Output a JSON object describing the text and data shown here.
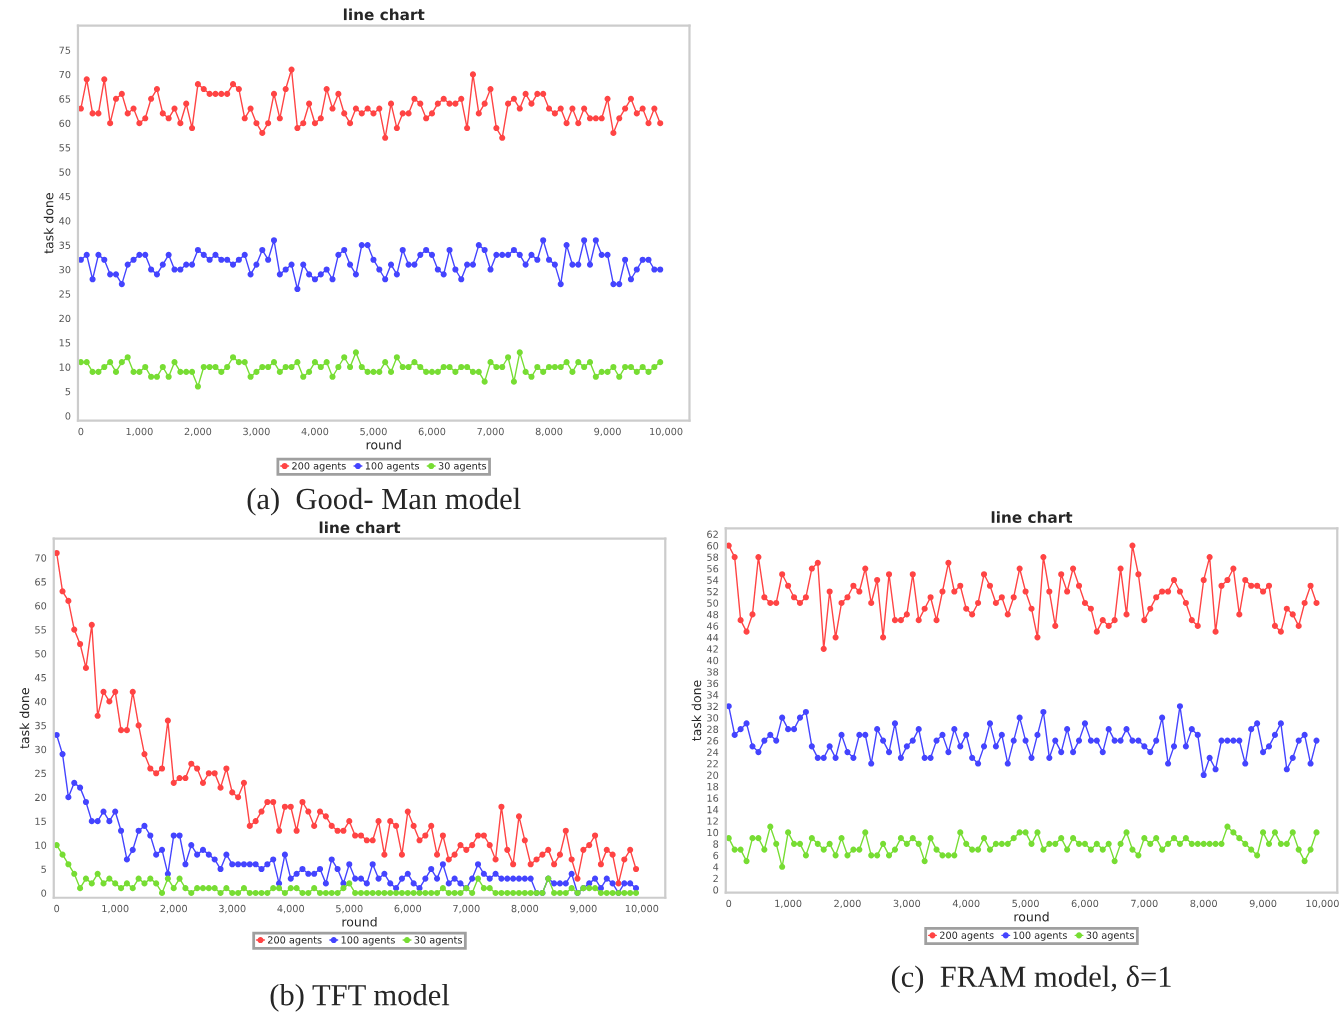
{
  "chart_data": [
    {
      "type": "line",
      "title": "line chart",
      "xlabel": "round",
      "ylabel": "task done",
      "marker": "circle",
      "legend": "bottom",
      "grid": false,
      "x": [
        0,
        100,
        200,
        300,
        400,
        500,
        600,
        700,
        800,
        900,
        1000,
        1100,
        1200,
        1300,
        1400,
        1500,
        1600,
        1700,
        1800,
        1900,
        2000,
        2100,
        2200,
        2300,
        2400,
        2500,
        2600,
        2700,
        2800,
        2900,
        3000,
        3100,
        3200,
        3300,
        3400,
        3500,
        3600,
        3700,
        3800,
        3900,
        4000,
        4100,
        4200,
        4300,
        4400,
        4500,
        4600,
        4700,
        4800,
        4900,
        5000,
        5100,
        5200,
        5300,
        5400,
        5500,
        5600,
        5700,
        5800,
        5900,
        6000,
        6100,
        6200,
        6300,
        6400,
        6500,
        6600,
        6700,
        6800,
        6900,
        7000,
        7100,
        7200,
        7300,
        7400,
        7500,
        7600,
        7700,
        7800,
        7900,
        8000,
        8100,
        8200,
        8300,
        8400,
        8500,
        8600,
        8700,
        8800,
        8900,
        9000,
        9100,
        9200,
        9300,
        9400,
        9500,
        9600,
        9700,
        9800,
        9900
      ],
      "xlim": [
        -50,
        10400
      ],
      "xticks": [
        0,
        {
          "value": 1000,
          "label": "1,000"
        },
        {
          "value": 2000,
          "label": "2,000"
        },
        {
          "value": 3000,
          "label": "3,000"
        },
        {
          "value": 4000,
          "label": "4,000"
        },
        {
          "value": 5000,
          "label": "5,000"
        },
        {
          "value": 6000,
          "label": "6,000"
        },
        {
          "value": 7000,
          "label": "7,000"
        },
        {
          "value": 8000,
          "label": "8,000"
        },
        {
          "value": 9000,
          "label": "9,000"
        },
        {
          "value": 10000,
          "label": "10,000"
        }
      ],
      "ylim": [
        -1,
        80
      ],
      "yticks": [
        0,
        5,
        10,
        15,
        20,
        25,
        30,
        35,
        40,
        45,
        50,
        55,
        60,
        65,
        70,
        75
      ],
      "annotations": [
        "(a)  Good- Man model"
      ],
      "series": [
        {
          "name": "200 agents",
          "color": "#ff4444",
          "values": [
            63,
            69,
            62,
            62,
            69,
            60,
            65,
            66,
            62,
            63,
            60,
            61,
            65,
            67,
            62,
            61,
            63,
            60,
            64,
            59,
            68,
            67,
            66,
            66,
            66,
            66,
            68,
            67,
            61,
            63,
            60,
            58,
            60,
            66,
            61,
            67,
            71,
            59,
            60,
            64,
            60,
            61,
            67,
            63,
            66,
            62,
            60,
            63,
            62,
            63,
            62,
            63,
            57,
            64,
            59,
            62,
            62,
            65,
            64,
            61,
            62,
            64,
            65,
            64,
            64,
            65,
            59,
            70,
            62,
            64,
            67,
            59,
            57,
            64,
            65,
            63,
            66,
            64,
            66,
            66,
            63,
            62,
            63,
            60,
            63,
            60,
            63,
            61,
            61,
            61,
            65,
            58,
            61,
            63,
            65,
            62,
            63,
            60,
            63,
            60
          ]
        },
        {
          "name": "100 agents",
          "color": "#4444ff",
          "values": [
            32,
            33,
            28,
            33,
            32,
            29,
            29,
            27,
            31,
            32,
            33,
            33,
            30,
            29,
            31,
            33,
            30,
            30,
            31,
            31,
            34,
            33,
            32,
            33,
            32,
            32,
            31,
            32,
            33,
            29,
            31,
            34,
            32,
            36,
            29,
            30,
            31,
            26,
            31,
            29,
            28,
            29,
            30,
            28,
            33,
            34,
            31,
            29,
            35,
            35,
            32,
            30,
            28,
            31,
            29,
            34,
            31,
            31,
            33,
            34,
            33,
            30,
            29,
            34,
            30,
            28,
            31,
            31,
            35,
            34,
            30,
            33,
            33,
            33,
            34,
            33,
            31,
            33,
            32,
            36,
            32,
            31,
            27,
            35,
            31,
            31,
            36,
            31,
            36,
            33,
            33,
            27,
            27,
            32,
            28,
            30,
            32,
            32,
            30,
            30
          ]
        },
        {
          "name": "30 agents",
          "color": "#77dd33",
          "values": [
            11,
            11,
            9,
            9,
            10,
            11,
            9,
            11,
            12,
            9,
            9,
            10,
            8,
            8,
            10,
            8,
            11,
            9,
            9,
            9,
            6,
            10,
            10,
            10,
            9,
            10,
            12,
            11,
            11,
            8,
            9,
            10,
            10,
            11,
            9,
            10,
            10,
            11,
            8,
            9,
            11,
            10,
            11,
            8,
            10,
            12,
            10,
            13,
            10,
            9,
            9,
            9,
            11,
            9,
            12,
            10,
            10,
            11,
            10,
            9,
            9,
            9,
            10,
            10,
            9,
            10,
            10,
            9,
            9,
            7,
            11,
            10,
            10,
            12,
            7,
            13,
            9,
            8,
            10,
            9,
            10,
            10,
            10,
            11,
            9,
            11,
            10,
            11,
            8,
            9,
            9,
            10,
            8,
            10,
            10,
            9,
            10,
            9,
            10,
            11
          ]
        }
      ]
    },
    {
      "type": "line",
      "title": "line chart",
      "xlabel": "round",
      "ylabel": "task done",
      "marker": "circle",
      "legend": "bottom",
      "grid": false,
      "x": [
        0,
        100,
        200,
        300,
        400,
        500,
        600,
        700,
        800,
        900,
        1000,
        1100,
        1200,
        1300,
        1400,
        1500,
        1600,
        1700,
        1800,
        1900,
        2000,
        2100,
        2200,
        2300,
        2400,
        2500,
        2600,
        2700,
        2800,
        2900,
        3000,
        3100,
        3200,
        3300,
        3400,
        3500,
        3600,
        3700,
        3800,
        3900,
        4000,
        4100,
        4200,
        4300,
        4400,
        4500,
        4600,
        4700,
        4800,
        4900,
        5000,
        5100,
        5200,
        5300,
        5400,
        5500,
        5600,
        5700,
        5800,
        5900,
        6000,
        6100,
        6200,
        6300,
        6400,
        6500,
        6600,
        6700,
        6800,
        6900,
        7000,
        7100,
        7200,
        7300,
        7400,
        7500,
        7600,
        7700,
        7800,
        7900,
        8000,
        8100,
        8200,
        8300,
        8400,
        8500,
        8600,
        8700,
        8800,
        8900,
        9000,
        9100,
        9200,
        9300,
        9400,
        9500,
        9600,
        9700,
        9800,
        9900
      ],
      "xlim": [
        -50,
        10400
      ],
      "xticks": [
        0,
        {
          "value": 1000,
          "label": "1,000"
        },
        {
          "value": 2000,
          "label": "2,000"
        },
        {
          "value": 3000,
          "label": "3,000"
        },
        {
          "value": 4000,
          "label": "4,000"
        },
        {
          "value": 5000,
          "label": "5,000"
        },
        {
          "value": 6000,
          "label": "6,000"
        },
        {
          "value": 7000,
          "label": "7,000"
        },
        {
          "value": 8000,
          "label": "8,000"
        },
        {
          "value": 9000,
          "label": "9,000"
        },
        {
          "value": 10000,
          "label": "10,000"
        }
      ],
      "ylim": [
        -1,
        74
      ],
      "yticks": [
        0,
        5,
        10,
        15,
        20,
        25,
        30,
        35,
        40,
        45,
        50,
        55,
        60,
        65,
        70
      ],
      "annotations": [
        "(b) TFT model"
      ],
      "series": [
        {
          "name": "200 agents",
          "color": "#ff4444",
          "values": [
            71,
            63,
            61,
            55,
            52,
            47,
            56,
            37,
            42,
            40,
            42,
            34,
            34,
            42,
            35,
            29,
            26,
            25,
            26,
            36,
            23,
            24,
            24,
            27,
            26,
            23,
            25,
            25,
            22,
            26,
            21,
            20,
            23,
            14,
            15,
            17,
            19,
            19,
            13,
            18,
            18,
            13,
            19,
            17,
            14,
            17,
            16,
            14,
            13,
            13,
            15,
            12,
            12,
            11,
            11,
            15,
            8,
            15,
            14,
            8,
            17,
            14,
            11,
            12,
            14,
            8,
            12,
            7,
            8,
            10,
            9,
            10,
            12,
            12,
            10,
            7,
            18,
            9,
            6,
            16,
            11,
            6,
            7,
            8,
            9,
            6,
            8,
            13,
            7,
            3,
            9,
            10,
            12,
            6,
            9,
            8,
            2,
            7,
            9,
            5
          ]
        },
        {
          "name": "100 agents",
          "color": "#4444ff",
          "values": [
            33,
            29,
            20,
            23,
            22,
            19,
            15,
            15,
            17,
            15,
            17,
            13,
            7,
            9,
            13,
            14,
            12,
            8,
            9,
            4,
            12,
            12,
            6,
            10,
            8,
            9,
            8,
            7,
            5,
            8,
            6,
            6,
            6,
            6,
            6,
            5,
            6,
            7,
            2,
            8,
            3,
            4,
            5,
            4,
            4,
            5,
            2,
            7,
            5,
            2,
            6,
            3,
            3,
            2,
            6,
            3,
            4,
            2,
            1,
            3,
            4,
            2,
            1,
            3,
            5,
            3,
            6,
            2,
            3,
            2,
            1,
            3,
            6,
            4,
            3,
            4,
            3,
            3,
            3,
            3,
            3,
            3,
            0,
            0,
            3,
            2,
            2,
            2,
            4,
            0,
            1,
            2,
            3,
            1,
            3,
            2,
            0,
            2,
            2,
            1
          ]
        },
        {
          "name": "30 agents",
          "color": "#77dd33",
          "values": [
            10,
            8,
            6,
            4,
            1,
            3,
            2,
            4,
            2,
            3,
            2,
            1,
            2,
            1,
            3,
            2,
            3,
            2,
            0,
            3,
            1,
            3,
            1,
            0,
            1,
            1,
            1,
            1,
            0,
            1,
            0,
            0,
            1,
            0,
            0,
            0,
            0,
            1,
            1,
            0,
            1,
            1,
            0,
            0,
            1,
            0,
            0,
            0,
            0,
            1,
            2,
            0,
            0,
            0,
            0,
            0,
            0,
            0,
            0,
            0,
            0,
            0,
            0,
            0,
            0,
            0,
            1,
            0,
            0,
            0,
            1,
            0,
            3,
            1,
            1,
            0,
            0,
            0,
            0,
            0,
            0,
            0,
            0,
            0,
            3,
            0,
            0,
            0,
            1,
            0,
            1,
            1,
            1,
            0,
            0,
            0,
            0,
            0,
            0,
            0
          ]
        }
      ]
    },
    {
      "type": "line",
      "title": "line chart",
      "xlabel": "round",
      "ylabel": "task done",
      "marker": "circle",
      "legend": "bottom",
      "grid": false,
      "x": [
        0,
        100,
        200,
        300,
        400,
        500,
        600,
        700,
        800,
        900,
        1000,
        1100,
        1200,
        1300,
        1400,
        1500,
        1600,
        1700,
        1800,
        1900,
        2000,
        2100,
        2200,
        2300,
        2400,
        2500,
        2600,
        2700,
        2800,
        2900,
        3000,
        3100,
        3200,
        3300,
        3400,
        3500,
        3600,
        3700,
        3800,
        3900,
        4000,
        4100,
        4200,
        4300,
        4400,
        4500,
        4600,
        4700,
        4800,
        4900,
        5000,
        5100,
        5200,
        5300,
        5400,
        5500,
        5600,
        5700,
        5800,
        5900,
        6000,
        6100,
        6200,
        6300,
        6400,
        6500,
        6600,
        6700,
        6800,
        6900,
        7000,
        7100,
        7200,
        7300,
        7400,
        7500,
        7600,
        7700,
        7800,
        7900,
        8000,
        8100,
        8200,
        8300,
        8400,
        8500,
        8600,
        8700,
        8800,
        8900,
        9000,
        9100,
        9200,
        9300,
        9400,
        9500,
        9600,
        9700,
        9800,
        9900
      ],
      "xlim": [
        -50,
        10250
      ],
      "xticks": [
        0,
        {
          "value": 1000,
          "label": "1,000"
        },
        {
          "value": 2000,
          "label": "2,000"
        },
        {
          "value": 3000,
          "label": "3,000"
        },
        {
          "value": 4000,
          "label": "4,000"
        },
        {
          "value": 5000,
          "label": "5,000"
        },
        {
          "value": 6000,
          "label": "6,000"
        },
        {
          "value": 7000,
          "label": "7,000"
        },
        {
          "value": 8000,
          "label": "8,000"
        },
        {
          "value": 9000,
          "label": "9,000"
        },
        {
          "value": 10000,
          "label": "10,000"
        }
      ],
      "ylim": [
        -0.5,
        63
      ],
      "yticks": [
        0,
        2,
        4,
        6,
        8,
        10,
        12,
        14,
        16,
        18,
        20,
        22,
        24,
        26,
        28,
        30,
        32,
        34,
        36,
        38,
        40,
        42,
        44,
        46,
        48,
        50,
        52,
        54,
        56,
        58,
        60,
        62
      ],
      "annotations": [
        "(c)  FRAM model, δ=1"
      ],
      "series": [
        {
          "name": "200 agents",
          "color": "#ff4444",
          "values": [
            60,
            58,
            47,
            45,
            48,
            58,
            51,
            50,
            50,
            55,
            53,
            51,
            50,
            51,
            56,
            57,
            42,
            52,
            44,
            50,
            51,
            53,
            52,
            56,
            50,
            54,
            44,
            55,
            47,
            47,
            48,
            55,
            47,
            49,
            51,
            47,
            52,
            57,
            52,
            53,
            49,
            48,
            50,
            55,
            53,
            50,
            51,
            48,
            51,
            56,
            52,
            49,
            44,
            58,
            52,
            46,
            55,
            52,
            56,
            53,
            50,
            49,
            45,
            47,
            46,
            47,
            56,
            48,
            60,
            55,
            47,
            49,
            51,
            52,
            52,
            54,
            52,
            50,
            47,
            46,
            54,
            58,
            45,
            53,
            54,
            56,
            48,
            54,
            53,
            53,
            52,
            53,
            46,
            45,
            49,
            48,
            46,
            50,
            53,
            50
          ]
        },
        {
          "name": "100 agents",
          "color": "#4444ff",
          "values": [
            32,
            27,
            28,
            29,
            25,
            24,
            26,
            27,
            26,
            30,
            28,
            28,
            30,
            31,
            25,
            23,
            23,
            25,
            23,
            27,
            24,
            23,
            27,
            27,
            22,
            28,
            26,
            24,
            29,
            23,
            25,
            26,
            28,
            23,
            23,
            26,
            27,
            24,
            28,
            25,
            27,
            23,
            22,
            25,
            29,
            25,
            27,
            22,
            26,
            30,
            26,
            23,
            27,
            31,
            23,
            26,
            24,
            28,
            24,
            26,
            29,
            26,
            26,
            24,
            28,
            26,
            26,
            28,
            26,
            26,
            25,
            24,
            26,
            30,
            22,
            25,
            32,
            25,
            28,
            27,
            20,
            23,
            21,
            26,
            26,
            26,
            26,
            22,
            28,
            29,
            24,
            25,
            27,
            29,
            21,
            23,
            26,
            27,
            22,
            26
          ]
        },
        {
          "name": "30 agents",
          "color": "#77dd33",
          "values": [
            9,
            7,
            7,
            5,
            9,
            9,
            7,
            11,
            8,
            4,
            10,
            8,
            8,
            6,
            9,
            8,
            7,
            8,
            6,
            9,
            6,
            7,
            7,
            10,
            6,
            6,
            8,
            6,
            7,
            9,
            8,
            9,
            8,
            5,
            9,
            7,
            6,
            6,
            6,
            10,
            8,
            7,
            7,
            9,
            7,
            8,
            8,
            8,
            9,
            10,
            10,
            8,
            10,
            7,
            8,
            8,
            9,
            7,
            9,
            8,
            8,
            7,
            8,
            7,
            8,
            5,
            8,
            10,
            7,
            6,
            9,
            8,
            9,
            7,
            8,
            9,
            8,
            9,
            8,
            8,
            8,
            8,
            8,
            8,
            11,
            10,
            9,
            8,
            7,
            6,
            10,
            8,
            10,
            8,
            8,
            10,
            7,
            5,
            7,
            10
          ]
        }
      ]
    }
  ]
}
